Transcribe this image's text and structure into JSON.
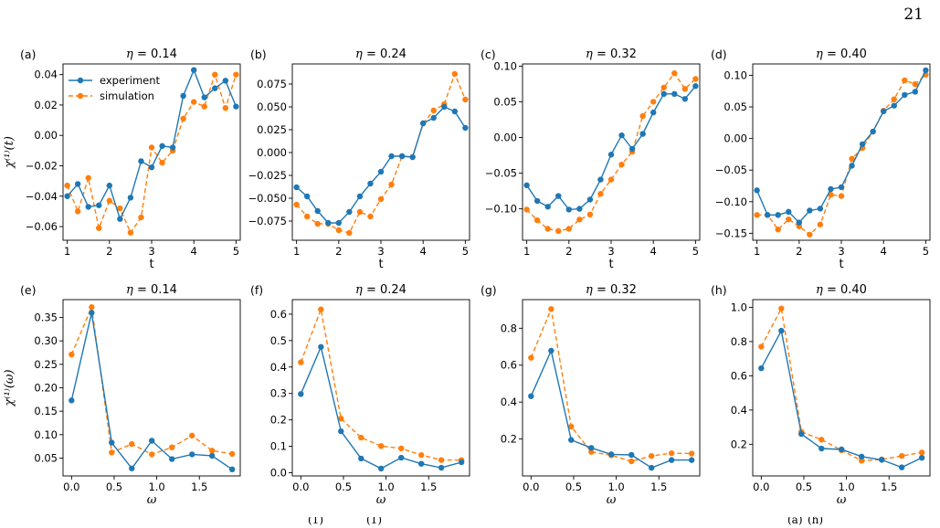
{
  "page_number": "21",
  "colors": {
    "experiment": "#1f77b4",
    "simulation": "#ff7f0e"
  },
  "legend": {
    "experiment": "experiment",
    "simulation": "simulation",
    "placement": "upper-left of panel (a)"
  },
  "caption_fragment": [
    "(1)",
    "(1)",
    "(a)",
    "(h)"
  ],
  "chart_data": [
    {
      "panel": "(a)",
      "type": "line",
      "title": "η = 0.14",
      "xlabel": "t",
      "ylabel": "χ⁽¹⁾(t)",
      "xlim": [
        0.9,
        5.1
      ],
      "ylim": [
        -0.069,
        0.047
      ],
      "xticks": [
        1,
        2,
        3,
        4,
        5
      ],
      "xtick_labels": [
        "1",
        "2",
        "3",
        "4",
        "5"
      ],
      "yticks": [
        -0.06,
        -0.04,
        -0.02,
        0.0,
        0.02,
        0.04
      ],
      "ytick_labels": [
        "−0.06",
        "−0.04",
        "−0.02",
        "0.00",
        "0.02",
        "0.04"
      ],
      "x": [
        1.0,
        1.25,
        1.5,
        1.75,
        2.0,
        2.25,
        2.5,
        2.75,
        3.0,
        3.25,
        3.5,
        3.75,
        4.0,
        4.25,
        4.5,
        4.75,
        5.0
      ],
      "series": [
        {
          "name": "experiment",
          "values": [
            -0.04,
            -0.032,
            -0.047,
            -0.046,
            -0.033,
            -0.055,
            -0.041,
            -0.017,
            -0.021,
            -0.007,
            -0.008,
            0.026,
            0.043,
            0.025,
            0.031,
            0.036,
            0.019
          ]
        },
        {
          "name": "simulation",
          "values": [
            -0.033,
            -0.05,
            -0.028,
            -0.061,
            -0.043,
            -0.048,
            -0.064,
            -0.054,
            -0.008,
            -0.018,
            -0.01,
            0.011,
            0.022,
            0.019,
            0.04,
            0.018,
            0.04
          ]
        }
      ]
    },
    {
      "panel": "(b)",
      "type": "line",
      "title": "η = 0.24",
      "xlabel": "t",
      "ylabel": "",
      "xlim": [
        0.9,
        5.1
      ],
      "ylim": [
        -0.096,
        0.097
      ],
      "xticks": [
        1,
        2,
        3,
        4,
        5
      ],
      "xtick_labels": [
        "1",
        "2",
        "3",
        "4",
        "5"
      ],
      "yticks": [
        -0.075,
        -0.05,
        -0.025,
        0.0,
        0.025,
        0.05,
        0.075
      ],
      "ytick_labels": [
        "−0.075",
        "−0.050",
        "−0.025",
        "0.000",
        "0.025",
        "0.050",
        "0.075"
      ],
      "x": [
        1.0,
        1.25,
        1.5,
        1.75,
        2.0,
        2.25,
        2.5,
        2.75,
        3.0,
        3.25,
        3.5,
        3.75,
        4.0,
        4.25,
        4.5,
        4.75,
        5.0
      ],
      "series": [
        {
          "name": "experiment",
          "values": [
            -0.038,
            -0.048,
            -0.064,
            -0.077,
            -0.077,
            -0.065,
            -0.048,
            -0.034,
            -0.021,
            -0.004,
            -0.004,
            -0.005,
            0.032,
            0.038,
            0.05,
            0.045,
            0.027
          ]
        },
        {
          "name": "simulation",
          "values": [
            -0.057,
            -0.07,
            -0.078,
            -0.078,
            -0.085,
            -0.088,
            -0.065,
            -0.07,
            -0.051,
            -0.035,
            -0.004,
            -0.005,
            0.032,
            0.046,
            0.053,
            0.086,
            0.058
          ]
        }
      ]
    },
    {
      "panel": "(c)",
      "type": "line",
      "title": "η = 0.32",
      "xlabel": "t",
      "ylabel": "",
      "xlim": [
        0.9,
        5.1
      ],
      "ylim": [
        -0.144,
        0.103
      ],
      "xticks": [
        1,
        2,
        3,
        4,
        5
      ],
      "xtick_labels": [
        "1",
        "2",
        "3",
        "4",
        "5"
      ],
      "yticks": [
        -0.1,
        -0.05,
        0.0,
        0.05,
        0.1
      ],
      "ytick_labels": [
        "−0.10",
        "−0.05",
        "0.00",
        "0.05",
        "0.10"
      ],
      "x": [
        1.0,
        1.25,
        1.5,
        1.75,
        2.0,
        2.25,
        2.5,
        2.75,
        3.0,
        3.25,
        3.5,
        3.75,
        4.0,
        4.25,
        4.5,
        4.75,
        5.0
      ],
      "series": [
        {
          "name": "experiment",
          "values": [
            -0.067,
            -0.089,
            -0.097,
            -0.082,
            -0.101,
            -0.1,
            -0.087,
            -0.059,
            -0.024,
            0.003,
            -0.016,
            0.005,
            0.035,
            0.061,
            0.061,
            0.054,
            0.072
          ]
        },
        {
          "name": "simulation",
          "values": [
            -0.101,
            -0.116,
            -0.128,
            -0.131,
            -0.128,
            -0.115,
            -0.108,
            -0.079,
            -0.059,
            -0.038,
            -0.02,
            0.03,
            0.05,
            0.07,
            0.09,
            0.068,
            0.082
          ]
        }
      ]
    },
    {
      "panel": "(d)",
      "type": "line",
      "title": "η = 0.40",
      "xlabel": "t",
      "ylabel": "",
      "xlim": [
        0.9,
        5.1
      ],
      "ylim": [
        -0.161,
        0.118
      ],
      "xticks": [
        1,
        2,
        3,
        4,
        5
      ],
      "xtick_labels": [
        "1",
        "2",
        "3",
        "4",
        "5"
      ],
      "yticks": [
        -0.15,
        -0.1,
        -0.05,
        0.0,
        0.05,
        0.1
      ],
      "ytick_labels": [
        "−0.15",
        "−0.10",
        "−0.05",
        "0.00",
        "0.05",
        "0.10"
      ],
      "x": [
        1.0,
        1.25,
        1.5,
        1.75,
        2.0,
        2.25,
        2.5,
        2.75,
        3.0,
        3.25,
        3.5,
        3.75,
        4.0,
        4.25,
        4.5,
        4.75,
        5.0
      ],
      "series": [
        {
          "name": "experiment",
          "values": [
            -0.082,
            -0.121,
            -0.121,
            -0.116,
            -0.133,
            -0.114,
            -0.111,
            -0.08,
            -0.077,
            -0.043,
            -0.009,
            0.011,
            0.043,
            0.052,
            0.069,
            0.074,
            0.108
          ]
        },
        {
          "name": "simulation",
          "values": [
            -0.121,
            -0.121,
            -0.144,
            -0.128,
            -0.139,
            -0.152,
            -0.136,
            -0.089,
            -0.091,
            -0.032,
            -0.015,
            0.011,
            0.044,
            0.062,
            0.092,
            0.086,
            0.101
          ]
        }
      ]
    },
    {
      "panel": "(e)",
      "type": "line",
      "title": "η = 0.14",
      "xlabel": "ω",
      "ylabel": "χ⁽¹⁾(ω)",
      "xlim": [
        -0.1,
        1.98
      ],
      "ylim": [
        0.012,
        0.388
      ],
      "xticks": [
        0.0,
        0.5,
        1.0,
        1.5
      ],
      "xtick_labels": [
        "0.0",
        "0.5",
        "1.0",
        "1.5"
      ],
      "yticks": [
        0.05,
        0.1,
        0.15,
        0.2,
        0.25,
        0.3,
        0.35
      ],
      "ytick_labels": [
        "0.05",
        "0.10",
        "0.15",
        "0.20",
        "0.25",
        "0.30",
        "0.35"
      ],
      "x": [
        0.0,
        0.236,
        0.471,
        0.707,
        0.942,
        1.178,
        1.414,
        1.649,
        1.885
      ],
      "series": [
        {
          "name": "experiment",
          "values": [
            0.173,
            0.36,
            0.083,
            0.028,
            0.087,
            0.048,
            0.058,
            0.055,
            0.026
          ]
        },
        {
          "name": "simulation",
          "values": [
            0.271,
            0.372,
            0.062,
            0.08,
            0.058,
            0.073,
            0.098,
            0.066,
            0.059
          ]
        }
      ]
    },
    {
      "panel": "(f)",
      "type": "line",
      "title": "η = 0.24",
      "xlabel": "ω",
      "ylabel": "",
      "xlim": [
        -0.1,
        1.98
      ],
      "ylim": [
        -0.012,
        0.655
      ],
      "xticks": [
        0.0,
        0.5,
        1.0,
        1.5
      ],
      "xtick_labels": [
        "0.0",
        "0.5",
        "1.0",
        "1.5"
      ],
      "yticks": [
        0.0,
        0.1,
        0.2,
        0.3,
        0.4,
        0.5,
        0.6
      ],
      "ytick_labels": [
        "0.0",
        "0.1",
        "0.2",
        "0.3",
        "0.4",
        "0.5",
        "0.6"
      ],
      "x": [
        0.0,
        0.236,
        0.471,
        0.707,
        0.942,
        1.178,
        1.414,
        1.649,
        1.885
      ],
      "series": [
        {
          "name": "experiment",
          "values": [
            0.298,
            0.476,
            0.157,
            0.054,
            0.016,
            0.057,
            0.034,
            0.019,
            0.04
          ]
        },
        {
          "name": "simulation",
          "values": [
            0.418,
            0.618,
            0.205,
            0.133,
            0.101,
            0.092,
            0.067,
            0.048,
            0.048
          ]
        }
      ]
    },
    {
      "panel": "(g)",
      "type": "line",
      "title": "η = 0.32",
      "xlabel": "ω",
      "ylabel": "",
      "xlim": [
        -0.1,
        1.98
      ],
      "ylim": [
        0.0,
        0.955
      ],
      "xticks": [
        0.0,
        0.5,
        1.0,
        1.5
      ],
      "xtick_labels": [
        "0.0",
        "0.5",
        "1.0",
        "1.5"
      ],
      "yticks": [
        0.2,
        0.4,
        0.6,
        0.8
      ],
      "ytick_labels": [
        "0.2",
        "0.4",
        "0.6",
        "0.8"
      ],
      "x": [
        0.0,
        0.236,
        0.471,
        0.707,
        0.942,
        1.178,
        1.414,
        1.649,
        1.885
      ],
      "series": [
        {
          "name": "experiment",
          "values": [
            0.432,
            0.678,
            0.195,
            0.152,
            0.117,
            0.114,
            0.044,
            0.086,
            0.086
          ]
        },
        {
          "name": "simulation",
          "values": [
            0.64,
            0.904,
            0.267,
            0.13,
            0.112,
            0.079,
            0.108,
            0.123,
            0.121
          ]
        }
      ]
    },
    {
      "panel": "(h)",
      "type": "line",
      "title": "η = 0.40",
      "xlabel": "ω",
      "ylabel": "",
      "xlim": [
        -0.1,
        1.98
      ],
      "ylim": [
        0.015,
        1.045
      ],
      "xticks": [
        0.0,
        0.5,
        1.0,
        1.5
      ],
      "xtick_labels": [
        "0.0",
        "0.5",
        "1.0",
        "1.5"
      ],
      "yticks": [
        0.2,
        0.4,
        0.6,
        0.8,
        1.0
      ],
      "ytick_labels": [
        "0.2",
        "0.4",
        "0.6",
        "0.8",
        "1.0"
      ],
      "x": [
        0.0,
        0.236,
        0.471,
        0.707,
        0.942,
        1.178,
        1.414,
        1.649,
        1.885
      ],
      "series": [
        {
          "name": "experiment",
          "values": [
            0.644,
            0.863,
            0.26,
            0.175,
            0.17,
            0.128,
            0.109,
            0.065,
            0.121
          ]
        },
        {
          "name": "simulation",
          "values": [
            0.77,
            0.993,
            0.273,
            0.227,
            0.165,
            0.104,
            0.111,
            0.132,
            0.152
          ]
        }
      ]
    }
  ]
}
